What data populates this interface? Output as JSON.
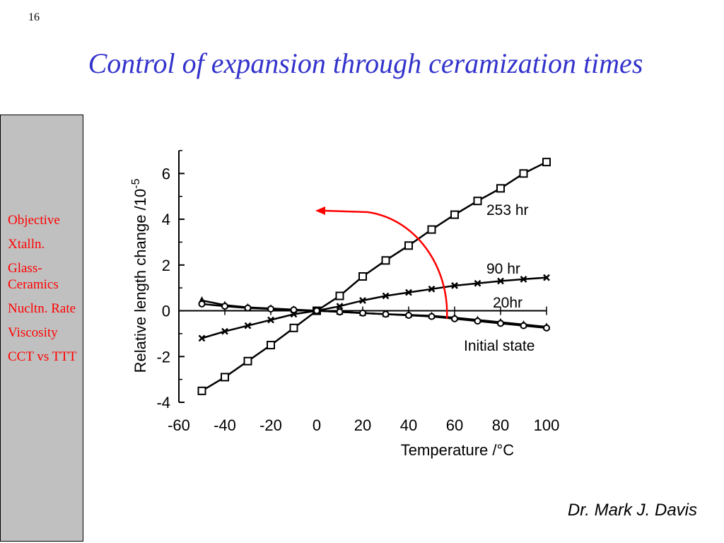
{
  "slide": {
    "number": "16",
    "title": "Control of expansion through ceramization times",
    "author": "Dr. Mark J. Davis"
  },
  "sidebar": {
    "items": [
      {
        "label": "Objective"
      },
      {
        "label": "Xtalln."
      },
      {
        "label": "Glass-Ceramics"
      },
      {
        "label": "Nucltn. Rate"
      },
      {
        "label": "Viscosity"
      },
      {
        "label": "CCT vs TTT"
      }
    ]
  },
  "colors": {
    "title": "#3333cc",
    "sidebar_text": "#ff0000",
    "arrow": "#ff0000",
    "sidebar_bg": "#c0c0c0"
  },
  "chart_data": {
    "type": "line",
    "xlabel": "Temperature /°C",
    "ylabel": "Relative length change /10",
    "ylabel_exponent": "-5",
    "xlim": [
      -60,
      100
    ],
    "ylim": [
      -4,
      7
    ],
    "xticks": [
      -60,
      -40,
      -20,
      0,
      20,
      40,
      60,
      80,
      100
    ],
    "yticks": [
      -4,
      -2,
      0,
      2,
      4,
      6
    ],
    "grid": false,
    "series": [
      {
        "name": "253 hr",
        "marker": "square",
        "x": [
          -50,
          -40,
          -30,
          -20,
          -10,
          0,
          10,
          20,
          30,
          40,
          50,
          60,
          70,
          80,
          90,
          100
        ],
        "y": [
          -3.5,
          -2.9,
          -2.2,
          -1.5,
          -0.75,
          0,
          0.65,
          1.5,
          2.2,
          2.85,
          3.55,
          4.2,
          4.8,
          5.35,
          6.0,
          6.5
        ]
      },
      {
        "name": "90 hr",
        "marker": "x",
        "x": [
          -50,
          -40,
          -30,
          -20,
          -10,
          0,
          10,
          20,
          30,
          40,
          50,
          60,
          70,
          80,
          90,
          100
        ],
        "y": [
          -1.2,
          -0.9,
          -0.65,
          -0.4,
          -0.15,
          0,
          0.2,
          0.45,
          0.65,
          0.8,
          0.95,
          1.1,
          1.2,
          1.3,
          1.38,
          1.45
        ]
      },
      {
        "name": "20hr",
        "marker": "triangle",
        "x": [
          -50,
          -40,
          -30,
          -20,
          -10,
          0,
          10,
          20,
          30,
          40,
          50,
          60,
          70,
          80,
          90,
          100
        ],
        "y": [
          0.45,
          0.25,
          0.15,
          0.1,
          0.05,
          0,
          -0.05,
          -0.1,
          -0.15,
          -0.18,
          -0.22,
          -0.3,
          -0.4,
          -0.5,
          -0.6,
          -0.7
        ]
      },
      {
        "name": "Initial state",
        "marker": "circle",
        "x": [
          -50,
          -40,
          -30,
          -20,
          -10,
          0,
          10,
          20,
          30,
          40,
          50,
          60,
          70,
          80,
          90,
          100
        ],
        "y": [
          0.3,
          0.2,
          0.12,
          0.08,
          0.04,
          0,
          -0.05,
          -0.1,
          -0.15,
          -0.2,
          -0.25,
          -0.35,
          -0.45,
          -0.55,
          -0.65,
          -0.75
        ]
      }
    ]
  }
}
